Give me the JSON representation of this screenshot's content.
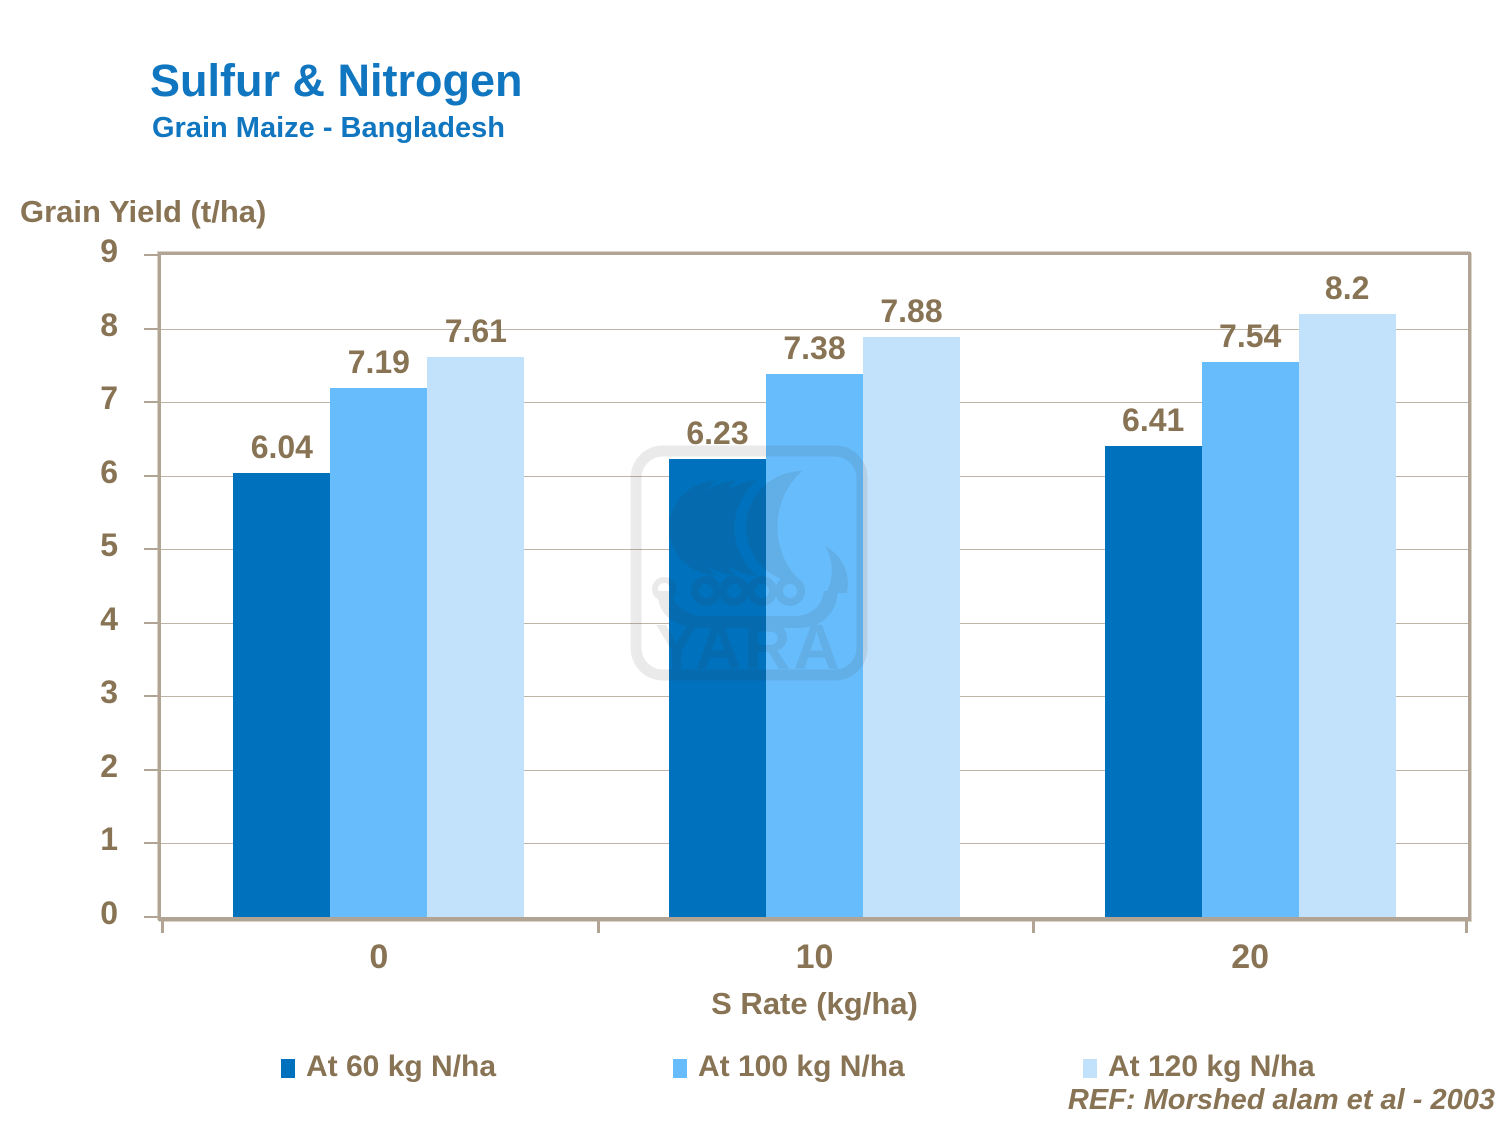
{
  "header": {
    "title": "Sulfur & Nitrogen",
    "subtitle": "Grain Maize - Bangladesh"
  },
  "ref_text": "REF:  Morshed alam et al - 2003",
  "watermark": {
    "text": "YARA",
    "icon": "viking-ship-logo"
  },
  "colors": {
    "title_blue": "#1076c0",
    "text_brown": "#887454",
    "frame_tan": "#b2a494",
    "gridline": "#bfb5a6",
    "series_dark_blue": "#0071bc",
    "series_medium_blue": "#67bcfb",
    "series_light_blue": "#c2e1fa"
  },
  "chart_data": {
    "type": "bar",
    "title": "Sulfur & Nitrogen",
    "subtitle": "Grain Maize - Bangladesh",
    "categories": [
      "0",
      "10",
      "20"
    ],
    "series": [
      {
        "name": "At 60 kg N/ha",
        "color": "#0071bc",
        "values": [
          6.04,
          6.23,
          6.41
        ],
        "labels": [
          "6.04",
          "6.23",
          "6.41"
        ]
      },
      {
        "name": "At 100 kg N/ha",
        "color": "#67bcfb",
        "values": [
          7.19,
          7.38,
          7.54
        ],
        "labels": [
          "7.19",
          "7.38",
          "7.54"
        ]
      },
      {
        "name": "At 120 kg N/ha",
        "color": "#c2e1fa",
        "values": [
          7.61,
          7.88,
          8.2
        ],
        "labels": [
          "7.61",
          "7.88",
          "8.2"
        ]
      }
    ],
    "xlabel": "S Rate (kg/ha)",
    "ylabel": "Grain Yield (t/ha)",
    "ylim": [
      0,
      9
    ],
    "yticks": [
      0,
      1,
      2,
      3,
      4,
      5,
      6,
      7,
      8,
      9
    ],
    "grid": "horizontal",
    "data_labels": true,
    "legend_position": "bottom"
  }
}
